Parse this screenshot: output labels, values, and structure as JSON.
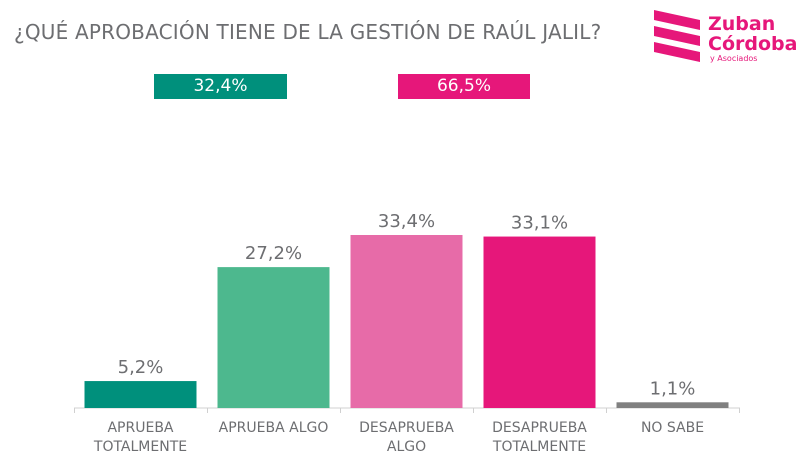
{
  "header": {
    "title": "¿QUÉ APROBACIÓN TIENE DE LA GESTIÓN DE RAÚL JALIL?"
  },
  "logo": {
    "line1": "Zuban",
    "line2": "Córdoba",
    "line3": "y Asociados",
    "color": "#e6177a"
  },
  "summary": [
    {
      "label": "32,4%",
      "color": "#00907c"
    },
    {
      "label": "66,5%",
      "color": "#e6177a"
    }
  ],
  "chart_data": {
    "type": "bar",
    "categories": [
      [
        "APRUEBA",
        "TOTALMENTE"
      ],
      [
        "APRUEBA ALGO"
      ],
      [
        "DESAPRUEBA",
        "ALGO"
      ],
      [
        "DESAPRUEBA",
        "TOTALMENTE"
      ],
      [
        "NO SABE"
      ]
    ],
    "values": [
      5.2,
      27.2,
      33.4,
      33.1,
      1.1
    ],
    "data_labels": [
      "5,2%",
      "27,2%",
      "33,4%",
      "33,1%",
      "1,1%"
    ],
    "colors": [
      "#00907c",
      "#4db88e",
      "#e76ba8",
      "#e6177a",
      "#808080"
    ],
    "ylim": [
      0,
      40
    ],
    "grid": false,
    "legend": "none"
  }
}
